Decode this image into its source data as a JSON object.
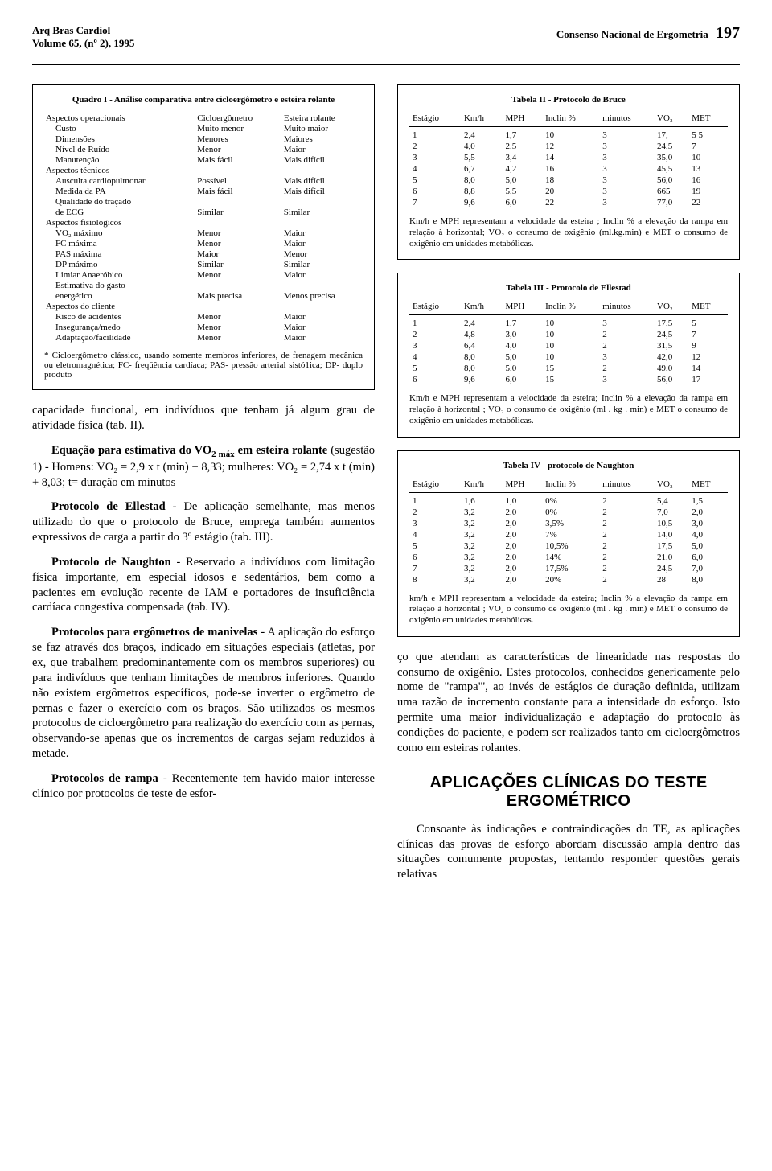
{
  "header": {
    "journal": "Arq Bras Cardiol",
    "volume": "Volume 65, (nº 2), 1995",
    "title": "Consenso Nacional de Ergometria",
    "page": "197"
  },
  "quadro1": {
    "title": "Quadro I - Análise comparativa entre cicloergômetro e esteira rolante",
    "headers": [
      "",
      "Cicloergômetro",
      "Esteira rolante"
    ],
    "sections": [
      {
        "label": "Aspectos operacionais",
        "rows": [
          [
            "Custo",
            "Muito menor",
            "Muito maior"
          ],
          [
            "Dimensões",
            "Menores",
            "Maiores"
          ],
          [
            "Nível de Ruído",
            "Menor",
            "Maior"
          ],
          [
            "Manutenção",
            "Mais fácil",
            "Mais difícil"
          ]
        ]
      },
      {
        "label": "Aspectos técnicos",
        "rows": [
          [
            "Ausculta cardiopulmonar",
            "Possível",
            "Mais difícil"
          ],
          [
            "Medida da PA",
            "Mais fácil",
            "Mais difícil"
          ],
          [
            "Qualidade do traçado",
            "",
            ""
          ],
          [
            "de ECG",
            "Similar",
            "Similar"
          ]
        ]
      },
      {
        "label": "Aspectos fisiológicos",
        "rows": [
          [
            "VO₂ máximo",
            "Menor",
            "Maior"
          ],
          [
            "FC máxima",
            "Menor",
            "Maior"
          ],
          [
            "PAS máxima",
            "Maior",
            "Menor"
          ],
          [
            "DP máximo",
            "Similar",
            "Similar"
          ],
          [
            "Limiar Anaeróbico",
            "Menor",
            "Maior"
          ],
          [
            "Estimativa do gasto",
            "",
            ""
          ],
          [
            "energético",
            "Mais precisa",
            "Menos precisa"
          ]
        ]
      },
      {
        "label": "Aspectos do cliente",
        "rows": [
          [
            "Risco de acidentes",
            "Menor",
            "Maior"
          ],
          [
            "Insegurança/medo",
            "Menor",
            "Maior"
          ],
          [
            "Adaptação/facilidade",
            "Menor",
            "Maior"
          ]
        ]
      }
    ],
    "footnote": "* Cicloergômetro clássico, usando somente membros inferiores, de frenagem mecânica ou eletromagnética; FC- freqüência cardíaca; PAS- pressão arterial sistó1ica; DP- duplo produto"
  },
  "tabela2": {
    "title": "Tabela II - Protocolo de Bruce",
    "columns": [
      "Estágio",
      "Km/h",
      "MPH",
      "Inclin %",
      "minutos",
      "VO₂",
      "MET"
    ],
    "rows": [
      [
        "1",
        "2,4",
        "1,7",
        "10",
        "3",
        "17,",
        "5 5"
      ],
      [
        "2",
        "4,0",
        "2,5",
        "12",
        "3",
        "24,5",
        "7"
      ],
      [
        "3",
        "5,5",
        "3,4",
        "14",
        "3",
        "35,0",
        "10"
      ],
      [
        "4",
        "6,7",
        "4,2",
        "16",
        "3",
        "45,5",
        "13"
      ],
      [
        "5",
        "8,0",
        "5,0",
        "18",
        "3",
        "56,0",
        "16"
      ],
      [
        "6",
        "8,8",
        "5,5",
        "20",
        "3",
        "665",
        "19"
      ],
      [
        "7",
        "9,6",
        "6,0",
        "22",
        "3",
        "77,0",
        "22"
      ]
    ],
    "caption": "Km/h e MPH representam a velocidade da esteira ; Inclin % a elevação da rampa em relação à horizontal; VO₂ o consumo de oxigênio (ml.kg.min) e MET o consumo de oxigênio em unidades metabólicas."
  },
  "tabela3": {
    "title": "Tabela III - Protocolo de Ellestad",
    "columns": [
      "Estágio",
      "Km/h",
      "MPH",
      "Inclin %",
      "minutos",
      "VO₂",
      "MET"
    ],
    "rows": [
      [
        "1",
        "2,4",
        "1,7",
        "10",
        "3",
        "17,5",
        "5"
      ],
      [
        "2",
        "4,8",
        "3,0",
        "10",
        "2",
        "24,5",
        "7"
      ],
      [
        "3",
        "6,4",
        "4,0",
        "10",
        "2",
        "31,5",
        "9"
      ],
      [
        "4",
        "8,0",
        "5,0",
        "10",
        "3",
        "42,0",
        "12"
      ],
      [
        "5",
        "8,0",
        "5,0",
        "15",
        "2",
        "49,0",
        "14"
      ],
      [
        "6",
        "9,6",
        "6,0",
        "15",
        "3",
        "56,0",
        "17"
      ]
    ],
    "caption": "Km/h e MPH representam a velocidade da esteira; Inclin % a elevação da rampa em relação à horizontal ; VO₂ o consumo de oxigênio (ml . kg . min) e MET o consumo de oxigênio em unidades metabólicas."
  },
  "tabela4": {
    "title": "Tabela IV - protocolo de Naughton",
    "columns": [
      "Estágio",
      "Km/h",
      "MPH",
      "Inclin %",
      "minutos",
      "VO₂",
      "MET"
    ],
    "rows": [
      [
        "1",
        "1,6",
        "1,0",
        "0%",
        "2",
        "5,4",
        "1,5"
      ],
      [
        "2",
        "3,2",
        "2,0",
        "0%",
        "2",
        "7,0",
        "2,0"
      ],
      [
        "3",
        "3,2",
        "2,0",
        "3,5%",
        "2",
        "10,5",
        "3,0"
      ],
      [
        "4",
        "3,2",
        "2,0",
        "7%",
        "2",
        "14,0",
        "4,0"
      ],
      [
        "5",
        "3,2",
        "2,0",
        "10,5%",
        "2",
        "17,5",
        "5,0"
      ],
      [
        "6",
        "3,2",
        "2,0",
        "14%",
        "2",
        "21,0",
        "6,0"
      ],
      [
        "7",
        "3,2",
        "2,0",
        "17,5%",
        "2",
        "24,5",
        "7,0"
      ],
      [
        "8",
        "3,2",
        "2,0",
        "20%",
        "2",
        "28",
        "8,0"
      ]
    ],
    "caption": "km/h e MPH representam a velocidade da esteira; Inclin % a elevação da rampa em relação à horizontal ; VO₂ o consumo de oxigênio (ml . kg . min) e MET o consumo de oxigênio em unidades metabólicas."
  },
  "left_text": {
    "p1": "capacidade funcional, em indivíduos que tenham já algum grau de atividade física (tab. II).",
    "p2_lead": "Equação para estimativa do VO",
    "p2_rest": " em esteira rolante",
    "p2b": " (sugestão 1) - Homens: VO₂ = 2,9 x t (min) + 8,33; mulheres: VO₂ = 2,74 x t (min) + 8,03; t= duração em minutos",
    "p3_lead": "Protocolo de Ellestad - ",
    "p3": "De aplicação semelhante, mas menos utilizado do que o protocolo de Bruce, emprega também aumentos expressivos de carga a partir do 3º estágio (tab. III).",
    "p4_lead": "Protocolo de Naughton",
    "p4": " - Reservado a indivíduos com limitação física importante, em especial idosos e sedentários, bem como a pacientes em evolução recente de IAM e portadores de insuficiência cardíaca congestiva compensada (tab. IV).",
    "p5_lead": "Protocolos para ergômetros de manivelas",
    "p5": " - A aplicação do esforço se faz através dos braços, indicado em situações especiais (atletas, por ex, que trabalhem predominantemente com os membros superiores) ou para indivíduos que tenham limitações de membros inferiores. Quando não existem ergômetros específicos, pode-se inverter o ergômetro de pernas e fazer o exercício com os braços. São utilizados os mesmos protocolos de cicloergômetro para realização do exercício com as pernas, observando-se apenas que os incrementos de cargas sejam reduzidos à metade.",
    "p6_lead": "Protocolos de rampa",
    "p6": " - Recentemente tem havido maior interesse clínico por protocolos de teste de esfor-"
  },
  "right_text": {
    "p1": "ço que atendam as características de linearidade nas respostas do consumo de oxigênio. Estes protocolos, conhecidos genericamente pelo nome de \"rampa\"', ao invés de estágios de duração definida, utilizam uma razão de incremento constante para a intensidade do esforço. Isto permite uma maior individualização e adaptação do protocolo às condições do paciente, e podem ser realizados tanto em cicloergômetros como em esteiras rolantes.",
    "heading": "APLICAÇÕES CLÍNICAS DO TESTE ERGOMÉTRICO",
    "p2": "Consoante às indicações e contraindicações do TE, as aplicações clínicas das provas de esforço abordam discussão ampla dentro das situações comumente propostas, tentando responder questões gerais relativas"
  }
}
